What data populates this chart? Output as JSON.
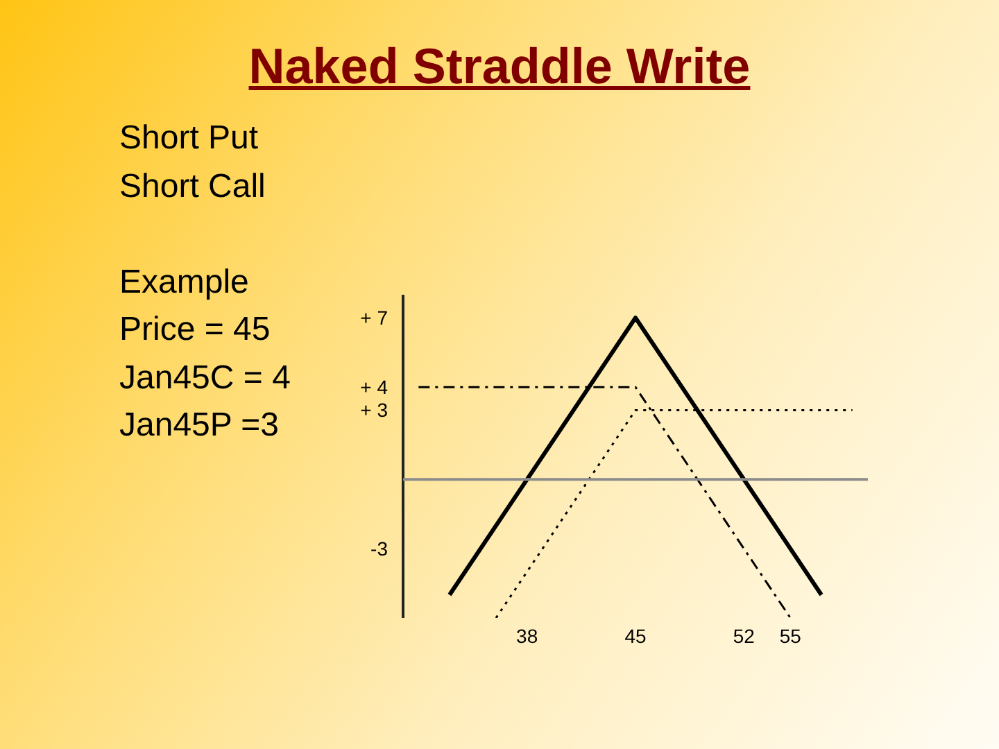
{
  "chart_data": {
    "type": "line",
    "title": "Naked Straddle Write",
    "annotations": [
      "Short Put\nShort Call",
      "Example\nPrice = 45\nJan45C = 4\nJan45P =3"
    ],
    "xlim": [
      30,
      60
    ],
    "ylim": [
      -6,
      8
    ],
    "xticks": [
      38,
      45,
      52,
      55
    ],
    "yticks": [
      {
        "value": 7,
        "label": "+ 7"
      },
      {
        "value": 4,
        "label": "+ 4"
      },
      {
        "value": 3,
        "label": "+ 3"
      },
      -3
    ],
    "grid": false,
    "ref_lines": [
      {
        "axis": "y",
        "value": 0,
        "color": "#8c8c8c"
      }
    ],
    "series": [
      {
        "color": "#000000",
        "line_style": "solid",
        "x": [
          33,
          45,
          57
        ],
        "values": [
          -5,
          7,
          -5
        ]
      },
      {
        "color": "#000000",
        "line_style": "dashed",
        "x": [
          31,
          45,
          55
        ],
        "values": [
          4,
          4,
          -6
        ]
      },
      {
        "color": "#000000",
        "line_style": "dotted",
        "x": [
          36,
          45,
          59
        ],
        "values": [
          -6,
          3,
          3
        ]
      }
    ]
  }
}
